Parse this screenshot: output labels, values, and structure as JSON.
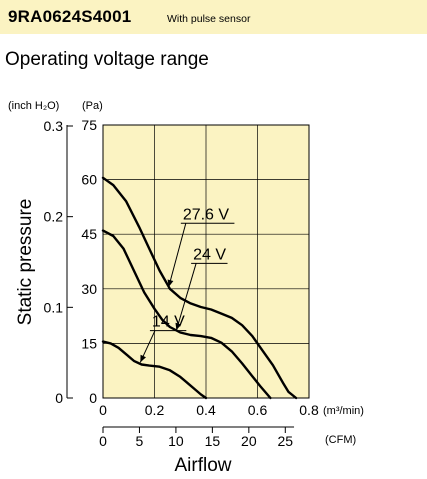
{
  "header": {
    "model": "9RA0624S4001",
    "note": "With pulse sensor",
    "bg_color": "#fbf3c2"
  },
  "section_title": "Operating voltage range",
  "chart_data": {
    "type": "line",
    "title": "",
    "ylabel": "Static pressure",
    "xlabel": "Airflow",
    "plot_bg": "#fbf3c2",
    "grid": true,
    "x_primary": {
      "unit": "(m³/min)",
      "range": [
        0,
        0.8
      ],
      "ticks": [
        0,
        0.2,
        0.4,
        0.6,
        0.8
      ],
      "tick_labels": [
        "0",
        "0.2",
        "0.4",
        "0.6",
        "0.8"
      ]
    },
    "x_secondary": {
      "unit": "(CFM)",
      "ticks": [
        0,
        5,
        10,
        15,
        20,
        25
      ],
      "tick_labels": [
        "0",
        "5",
        "10",
        "15",
        "20",
        "25"
      ]
    },
    "y_primary": {
      "unit": "(Pa)",
      "range": [
        0,
        75
      ],
      "ticks": [
        0,
        15,
        30,
        45,
        60,
        75
      ],
      "tick_labels": [
        "0",
        "15",
        "30",
        "45",
        "60",
        "75"
      ]
    },
    "y_secondary": {
      "unit": "(inch H₂O)",
      "ticks": [
        0,
        0.1,
        0.2,
        0.3
      ],
      "tick_labels": [
        "0",
        "0.1",
        "0.2",
        "0.3"
      ]
    },
    "series": [
      {
        "name": "27.6 V",
        "x": [
          0,
          0.04,
          0.09,
          0.14,
          0.18,
          0.22,
          0.26,
          0.3,
          0.34,
          0.38,
          0.42,
          0.46,
          0.5,
          0.54,
          0.58,
          0.62,
          0.66,
          0.7,
          0.72,
          0.75
        ],
        "y": [
          60.5,
          58.5,
          54,
          47,
          41,
          35,
          30,
          27.5,
          26,
          25,
          24.3,
          23.2,
          22,
          20,
          17,
          13,
          9,
          4,
          1.7,
          0
        ]
      },
      {
        "name": "24 V",
        "x": [
          0,
          0.04,
          0.08,
          0.12,
          0.16,
          0.2,
          0.23,
          0.26,
          0.3,
          0.34,
          0.38,
          0.42,
          0.46,
          0.5,
          0.54,
          0.58,
          0.61,
          0.65
        ],
        "y": [
          46,
          44.5,
          41,
          35,
          29,
          24.5,
          21.5,
          19.5,
          18,
          17.3,
          17,
          16.5,
          15.2,
          12.8,
          9.5,
          6,
          3.3,
          0
        ]
      },
      {
        "name": "14 V",
        "x": [
          0,
          0.03,
          0.06,
          0.09,
          0.12,
          0.15,
          0.18,
          0.22,
          0.26,
          0.3,
          0.33,
          0.36,
          0.38,
          0.4
        ],
        "y": [
          15.5,
          15,
          13.8,
          12,
          10.2,
          9.2,
          8.9,
          8.6,
          7.6,
          5.8,
          4,
          2.2,
          1,
          0
        ]
      }
    ],
    "series_labels": [
      {
        "text": "27.6 V",
        "x": 0.31,
        "y": 48
      },
      {
        "text": "24 V",
        "x": 0.35,
        "y": 37
      },
      {
        "text": "14 V",
        "x": 0.19,
        "y": 18.5
      }
    ]
  }
}
